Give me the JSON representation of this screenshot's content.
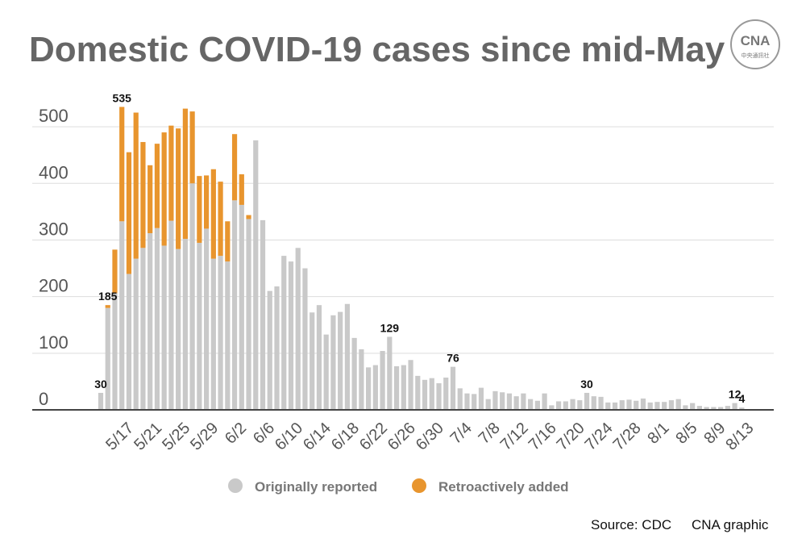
{
  "chart_data": {
    "type": "stacked-bar",
    "title": "Domestic COVID-19 cases since mid-May",
    "logo": {
      "text": "CNA",
      "subtext": "中央通訊社"
    },
    "categories": [
      null,
      null,
      null,
      "5/17",
      null,
      null,
      null,
      "5/21",
      null,
      null,
      null,
      "5/25",
      null,
      null,
      null,
      "5/29",
      null,
      null,
      null,
      "6/2",
      null,
      null,
      null,
      "6/6",
      null,
      null,
      null,
      "6/10",
      null,
      null,
      null,
      "6/14",
      null,
      null,
      null,
      "6/18",
      null,
      null,
      null,
      "6/22",
      null,
      null,
      null,
      "6/26",
      null,
      null,
      null,
      "6/30",
      null,
      null,
      null,
      "7/4",
      null,
      null,
      null,
      "7/8",
      null,
      null,
      null,
      "7/12",
      null,
      null,
      null,
      "7/16",
      null,
      null,
      null,
      "7/20",
      null,
      null,
      null,
      "7/24",
      null,
      null,
      null,
      "7/28",
      null,
      null,
      null,
      "8/1",
      null,
      null,
      null,
      "8/5",
      null,
      null,
      null,
      "8/9",
      null,
      null,
      null,
      "8/13"
    ],
    "series": [
      {
        "name": "Originally reported",
        "color": "#c9c9c9",
        "values": [
          30,
          180,
          206,
          333,
          240,
          267,
          286,
          312,
          321,
          290,
          334,
          284,
          302,
          400,
          295,
          320,
          267,
          272,
          262,
          370,
          362,
          337,
          476,
          335,
          210,
          218,
          272,
          262,
          286,
          250,
          172,
          185,
          133,
          167,
          173,
          187,
          127,
          107,
          75,
          79,
          104,
          129,
          77,
          79,
          88,
          60,
          53,
          56,
          47,
          57,
          76,
          38,
          29,
          28,
          39,
          19,
          33,
          31,
          29,
          24,
          29,
          19,
          16,
          29,
          8,
          15,
          15,
          19,
          17,
          30,
          24,
          23,
          13,
          13,
          17,
          18,
          16,
          20,
          13,
          14,
          14,
          17,
          19,
          8,
          12,
          7,
          5,
          5,
          5,
          7,
          12,
          4
        ]
      },
      {
        "name": "Retroactively added",
        "color": "#e8952e",
        "values": [
          0,
          5,
          77,
          202,
          215,
          258,
          187,
          120,
          149,
          200,
          168,
          213,
          230,
          127,
          118,
          94,
          158,
          131,
          71,
          117,
          54,
          7,
          0,
          0,
          0,
          0,
          0,
          0,
          0,
          0,
          0,
          0,
          0,
          0,
          0,
          0,
          0,
          0,
          0,
          0,
          0,
          0,
          0,
          0,
          0,
          0,
          0,
          0,
          0,
          0,
          0,
          0,
          0,
          0,
          0,
          0,
          0,
          0,
          0,
          0,
          0,
          0,
          0,
          0,
          0,
          0,
          0,
          0,
          0,
          0,
          0,
          0,
          0,
          0,
          0,
          0,
          0,
          0,
          0,
          0,
          0,
          0,
          0,
          0,
          0,
          0,
          0,
          0,
          0,
          0,
          0,
          0
        ]
      }
    ],
    "annotations": [
      {
        "index": 0,
        "text": 30
      },
      {
        "index": 1,
        "text": 185
      },
      {
        "index": 3,
        "text": 535
      },
      {
        "index": 41,
        "text": 129
      },
      {
        "index": 50,
        "text": 76
      },
      {
        "index": 69,
        "text": 30
      },
      {
        "index": 90,
        "text": 12
      },
      {
        "index": 91,
        "text": 4
      }
    ],
    "ylim": [
      0,
      550
    ],
    "yticks": [
      0,
      100,
      200,
      300,
      400,
      500
    ],
    "grid": true,
    "source": "Source: CDC",
    "credit": "CNA graphic"
  }
}
